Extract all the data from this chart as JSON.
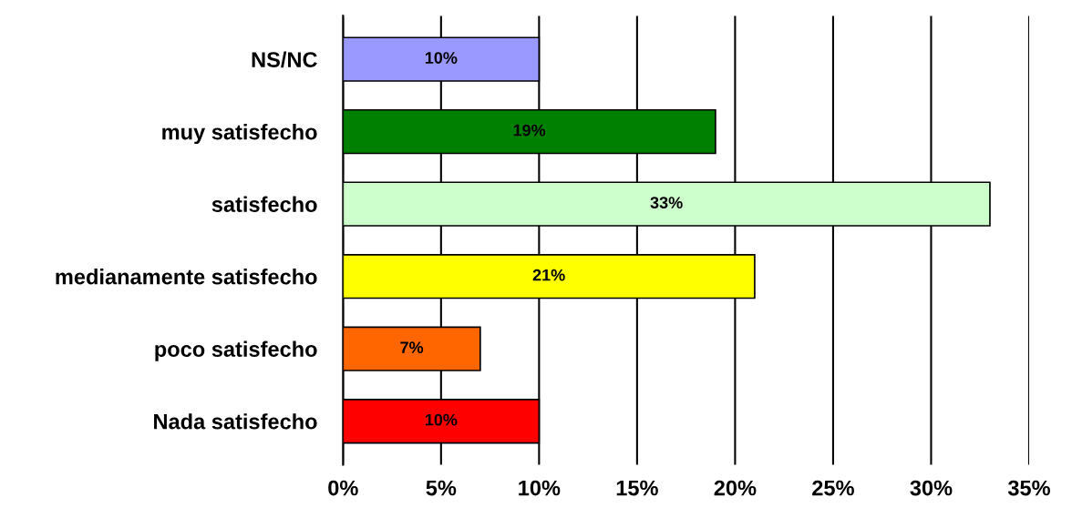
{
  "chart_data": {
    "type": "bar",
    "orientation": "horizontal",
    "categories": [
      "NS/NC",
      "muy satisfecho",
      "satisfecho",
      "medianamente satisfecho",
      "poco satisfecho",
      "Nada satisfecho"
    ],
    "values": [
      10,
      19,
      33,
      21,
      7,
      10
    ],
    "colors": [
      "#9999ff",
      "#008000",
      "#ccffcc",
      "#ffff00",
      "#ff6600",
      "#ff0000"
    ],
    "value_labels": [
      "10%",
      "19%",
      "33%",
      "21%",
      "7%",
      "10%"
    ],
    "xlim": [
      0,
      35
    ],
    "xticks": [
      {
        "value": 0,
        "label": "0%"
      },
      {
        "value": 5,
        "label": "5%"
      },
      {
        "value": 10,
        "label": "10%"
      },
      {
        "value": 15,
        "label": "15%"
      },
      {
        "value": 20,
        "label": "20%"
      },
      {
        "value": 25,
        "label": "25%"
      },
      {
        "value": 30,
        "label": "30%"
      },
      {
        "value": 35,
        "label": "35%"
      }
    ],
    "grid": "x",
    "legend": false
  }
}
